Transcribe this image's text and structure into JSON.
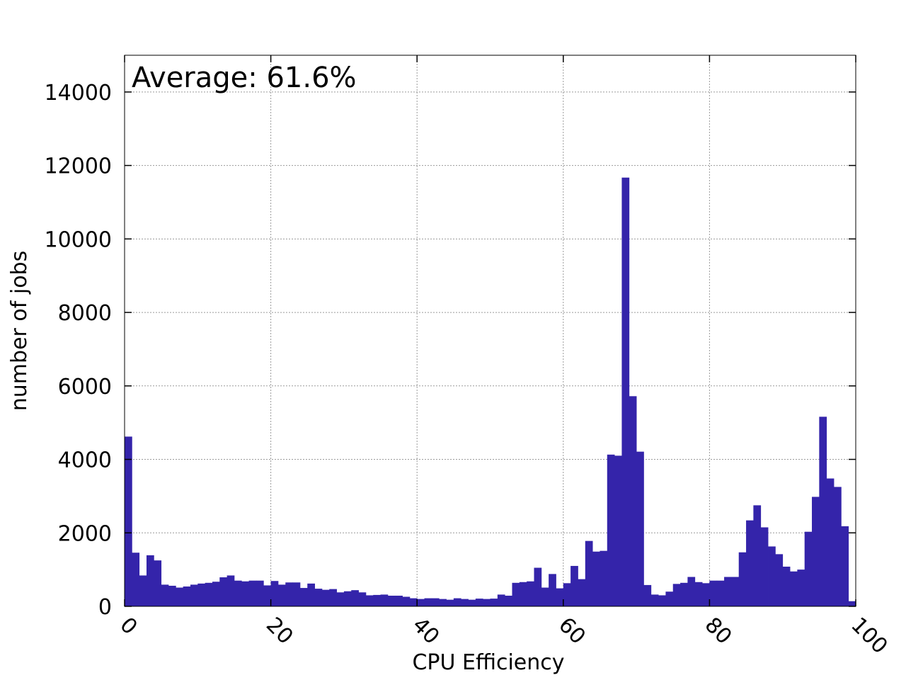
{
  "chart_data": {
    "type": "bar",
    "title": "",
    "xlabel": "CPU Efficiency",
    "ylabel": "number of jobs",
    "annotation": "Average: 61.6%",
    "xlim": [
      0,
      100
    ],
    "ylim": [
      0,
      15000
    ],
    "xticks": [
      0,
      20,
      40,
      60,
      80,
      100
    ],
    "yticks": [
      0,
      2000,
      4000,
      6000,
      8000,
      10000,
      12000,
      14000
    ],
    "grid": true,
    "bar_color": "#3424aa",
    "bin_width": 1,
    "bin_start": 0,
    "values": [
      4620,
      1460,
      840,
      1390,
      1250,
      590,
      560,
      510,
      540,
      590,
      620,
      640,
      670,
      790,
      840,
      700,
      680,
      700,
      700,
      570,
      690,
      590,
      650,
      650,
      500,
      620,
      480,
      450,
      470,
      380,
      410,
      440,
      380,
      300,
      310,
      320,
      290,
      290,
      260,
      220,
      200,
      220,
      220,
      200,
      180,
      220,
      200,
      180,
      210,
      200,
      210,
      320,
      290,
      640,
      660,
      680,
      1050,
      510,
      880,
      490,
      630,
      1100,
      740,
      1780,
      1490,
      1510,
      4130,
      4100,
      11670,
      5720,
      4210,
      580,
      320,
      300,
      400,
      610,
      640,
      800,
      660,
      630,
      700,
      700,
      800,
      800,
      1470,
      2340,
      2750,
      2150,
      1630,
      1420,
      1080,
      950,
      1000,
      2030,
      2980,
      5160,
      3480,
      3250,
      2180,
      140
    ]
  }
}
